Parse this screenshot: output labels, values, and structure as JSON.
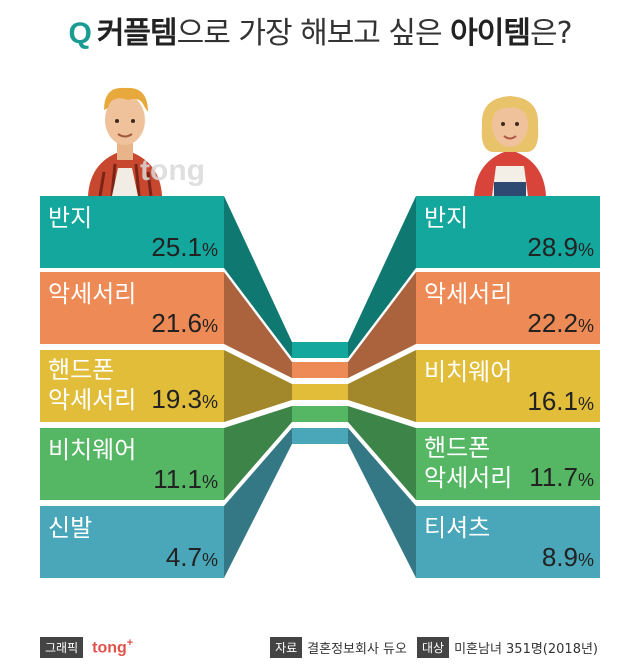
{
  "header": {
    "q_mark": "Q",
    "title_bold_1": "커플템",
    "title_mid": "으로 가장 해보고 싶은 ",
    "title_bold_2": "아이템",
    "title_end": "은?"
  },
  "watermark": "tong",
  "chart_data": {
    "type": "bar",
    "title": "커플템으로 가장 해보고 싶은 아이템은?",
    "unit": "%",
    "series": [
      {
        "side": "left",
        "items": [
          {
            "label": [
              "반지"
            ],
            "value": 25.1,
            "color": "#13a79d"
          },
          {
            "label": [
              "악세서리"
            ],
            "value": 21.6,
            "color": "#ee8a55"
          },
          {
            "label": [
              "핸드폰",
              "악세서리"
            ],
            "value": 19.3,
            "color": "#e1bd3a"
          },
          {
            "label": [
              "비치웨어"
            ],
            "value": 11.1,
            "color": "#55b764"
          },
          {
            "label": [
              "신발"
            ],
            "value": 4.7,
            "color": "#4aa6b9"
          }
        ]
      },
      {
        "side": "right",
        "items": [
          {
            "label": [
              "반지"
            ],
            "value": 28.9,
            "color": "#13a79d"
          },
          {
            "label": [
              "악세서리"
            ],
            "value": 22.2,
            "color": "#ee8a55"
          },
          {
            "label": [
              "비치웨어"
            ],
            "value": 16.1,
            "color": "#e1bd3a"
          },
          {
            "label": [
              "핸드폰",
              "악세서리"
            ],
            "value": 11.7,
            "color": "#55b764"
          },
          {
            "label": [
              "티셔츠"
            ],
            "value": 8.9,
            "color": "#4aa6b9"
          }
        ]
      }
    ]
  },
  "footer": {
    "graphic_tag": "그래픽",
    "brand": "tong",
    "brand_plus": "+",
    "source_tag": "자료",
    "source": "결혼정보회사 듀오",
    "target_tag": "대상",
    "target": "미혼남녀 351명(2018년)"
  }
}
